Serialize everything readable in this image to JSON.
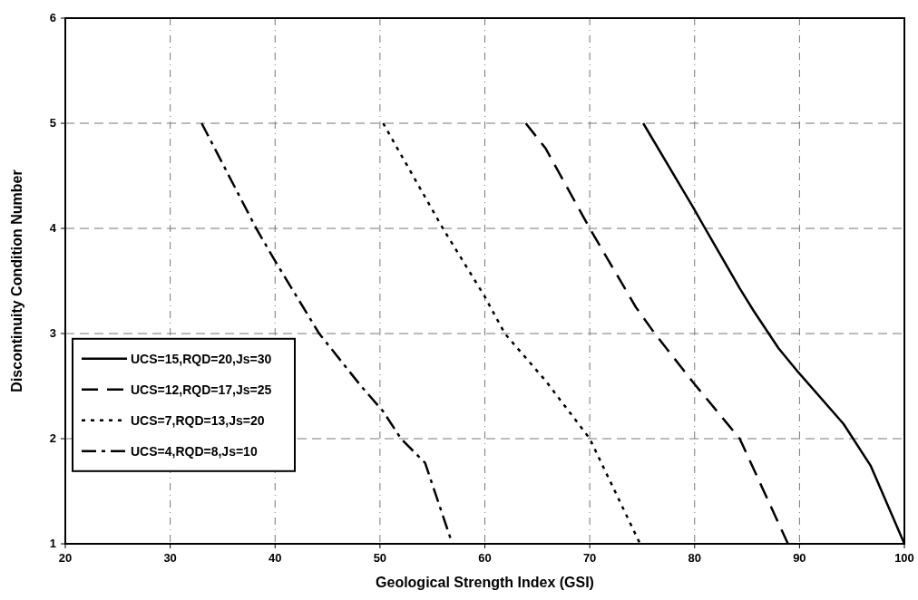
{
  "chart_data": {
    "type": "line",
    "xlabel": "Geological Strength Index (GSI)",
    "ylabel": "Discontinuity Condition Number",
    "xlim": [
      20,
      100
    ],
    "ylim": [
      1,
      6
    ],
    "xticks": [
      20,
      30,
      40,
      50,
      60,
      70,
      80,
      90,
      100
    ],
    "yticks": [
      1,
      2,
      3,
      4,
      5,
      6
    ],
    "grid": true,
    "legend": "left",
    "marker": "none",
    "series": [
      {
        "name": "UCS=15,RQD=20,Js=30",
        "color": "#000000",
        "line_style": "solid",
        "x": [
          75.1,
          79.8,
          81.0,
          84.3,
          85.6,
          88.0,
          89.9,
          94.2,
          96.8,
          100
        ],
        "values": [
          5,
          4.21,
          4.0,
          3.43,
          3.22,
          2.86,
          2.63,
          2.14,
          1.74,
          1
        ]
      },
      {
        "name": "UCS=12,RQD=17,Js=25",
        "color": "#000000",
        "line_style": "dashed",
        "x": [
          63.9,
          65.8,
          70.0,
          74.4,
          76.2,
          79.9,
          84.3,
          88.9
        ],
        "values": [
          5,
          4.76,
          4.0,
          3.25,
          3.0,
          2.53,
          2.0,
          1
        ]
      },
      {
        "name": "UCS=7,RQD=13,Js=20",
        "color": "#000000",
        "line_style": "dotted",
        "x": [
          50.3,
          56.0,
          60.0,
          61.9,
          65.8,
          70.0,
          74.8
        ],
        "values": [
          5,
          4.0,
          3.35,
          3.0,
          2.55,
          2.0,
          1
        ]
      },
      {
        "name": "UCS=4,RQD=8,Js=10",
        "color": "#000000",
        "line_style": "dashdot",
        "x": [
          33.0,
          38.2,
          40.0,
          44.2,
          48.2,
          50.3,
          52.0,
          54.3,
          56.9
        ],
        "values": [
          5,
          4.0,
          3.69,
          3.0,
          2.5,
          2.26,
          2.0,
          1.77,
          1
        ]
      }
    ]
  }
}
